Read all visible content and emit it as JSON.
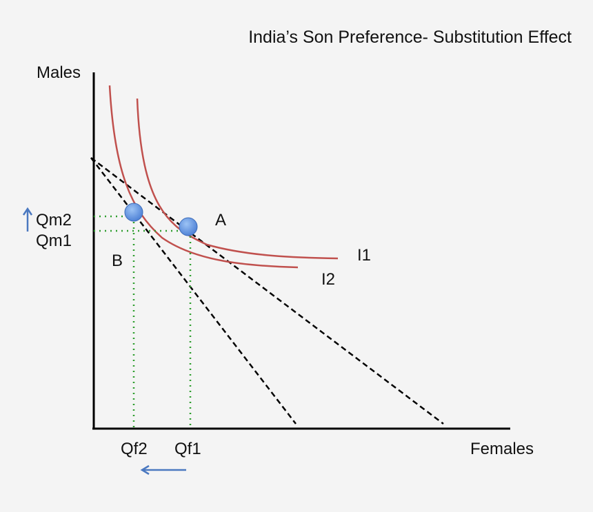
{
  "title": "India’s Son Preference- Substitution Effect",
  "axes": {
    "y_label": "Males",
    "x_label": "Females"
  },
  "points": {
    "a_label": "A",
    "b_label": "B"
  },
  "curves": {
    "i1_label": "I1",
    "i2_label": "I2"
  },
  "y_ticks": {
    "qm2": "Qm2",
    "qm1": "Qm1"
  },
  "x_ticks": {
    "qf2": "Qf2",
    "qf1": "Qf1"
  },
  "colors": {
    "indifference_curve": "#c0504d",
    "budget_line": "#000000",
    "guide_line": "#2e9e2e",
    "point_fill": "#5b8fe0",
    "arrow": "#4a78c0"
  }
}
